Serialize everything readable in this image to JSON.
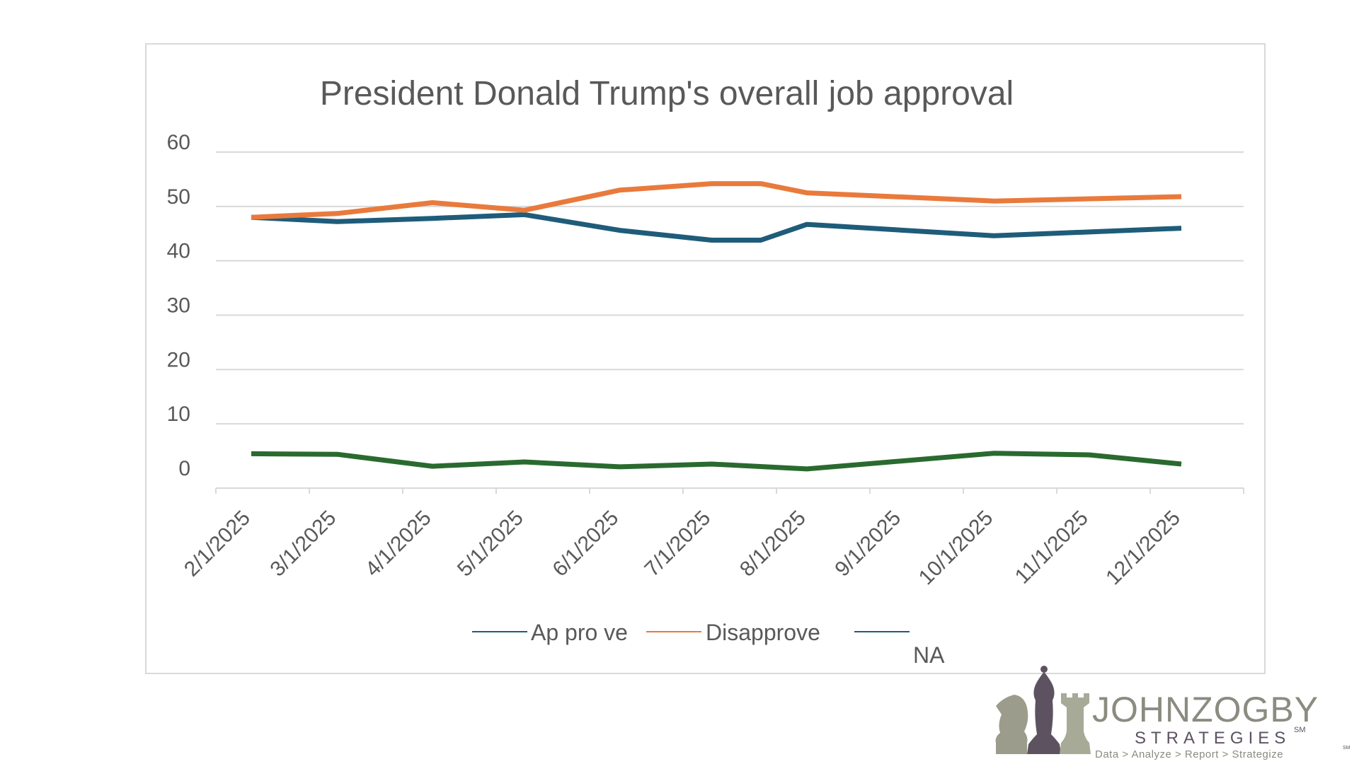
{
  "chart_data": {
    "type": "line",
    "title": "President Donald Trump's overall job approval",
    "xlabel": "",
    "ylabel": "",
    "ylim": [
      0,
      60
    ],
    "yticks": [
      "0",
      "10",
      "20",
      "30",
      "40",
      "50",
      "60"
    ],
    "x": [
      "2/1/2025",
      "3/1/2025",
      "4/1/2025",
      "5/1/2025",
      "6/1/2025",
      "7/1/2025",
      "8/1/2025",
      "9/1/2025",
      "10/1/2025",
      "11/1/2025",
      "12/1/2025"
    ],
    "grid": true,
    "legend": "bottom",
    "series": [
      {
        "name": "Ap pro ve",
        "color": "#1f5c7a",
        "points": [
          [
            "2/1/2025",
            48
          ],
          [
            "3/1/2025",
            47.2
          ],
          [
            "4/1/2025",
            47.8
          ],
          [
            "5/1/2025",
            48.5
          ],
          [
            "6/1/2025",
            45.6
          ],
          [
            "7/1/2025",
            43.8
          ],
          [
            "7/17/2025",
            43.8
          ],
          [
            "8/1/2025",
            46.7
          ],
          [
            "10/1/2025",
            44.6
          ],
          [
            "12/1/2025",
            46
          ]
        ]
      },
      {
        "name": "Disapprove",
        "color": "#e97a3c",
        "points": [
          [
            "2/1/2025",
            48
          ],
          [
            "3/1/2025",
            48.7
          ],
          [
            "4/1/2025",
            50.7
          ],
          [
            "5/1/2025",
            49.3
          ],
          [
            "6/1/2025",
            53
          ],
          [
            "7/1/2025",
            54.2
          ],
          [
            "7/17/2025",
            54.2
          ],
          [
            "8/1/2025",
            52.5
          ],
          [
            "10/1/2025",
            51
          ],
          [
            "12/1/2025",
            51.8
          ]
        ]
      },
      {
        "name": "NA",
        "color": "#2a6a2f",
        "points": [
          [
            "2/1/2025",
            4.5
          ],
          [
            "3/1/2025",
            4.4
          ],
          [
            "4/1/2025",
            2.2
          ],
          [
            "5/1/2025",
            3
          ],
          [
            "6/1/2025",
            2.1
          ],
          [
            "7/1/2025",
            2.6
          ],
          [
            "8/1/2025",
            1.7
          ],
          [
            "10/1/2025",
            4.6
          ],
          [
            "11/1/2025",
            4.3
          ],
          [
            "12/1/2025",
            2.6
          ]
        ]
      }
    ]
  },
  "logo": {
    "brand_part1": "JOHN",
    "brand_part2": "ZOGBY",
    "sub": "STRATEGIES",
    "sm": "SM",
    "tagline": "Data > Analyze > Report > Strategize",
    "tagline_sm": "SM"
  }
}
